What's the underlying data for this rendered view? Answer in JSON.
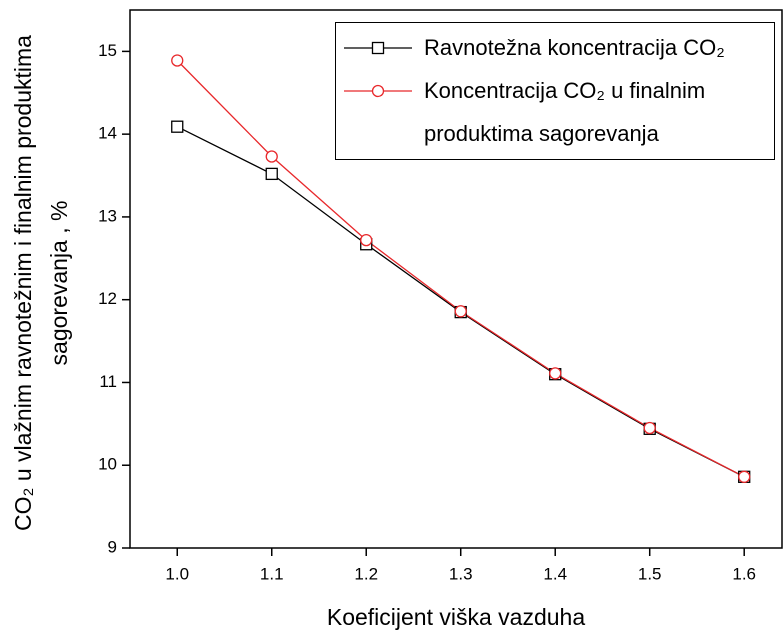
{
  "chart_data": {
    "type": "line",
    "xlabel": "Koeficijent viška vazduha",
    "ylabel": "CO₂ u vlažnim ravnotežnim i finalnim produktima sagorevanja , %",
    "x": [
      1.0,
      1.1,
      1.2,
      1.3,
      1.4,
      1.5,
      1.6
    ],
    "series": [
      {
        "name": "Ravnotežna koncentracija CO₂",
        "color": "#000000",
        "marker": "square",
        "values": [
          14.09,
          13.52,
          12.67,
          11.85,
          11.1,
          10.44,
          9.86
        ]
      },
      {
        "name": "Koncentracija CO₂ u finalnim produktima sagorevanja",
        "color": "#e8282b",
        "marker": "circle",
        "values": [
          14.89,
          13.73,
          12.72,
          11.86,
          11.11,
          10.45,
          9.86
        ]
      }
    ],
    "xlim": [
      0.95,
      1.64
    ],
    "ylim": [
      9,
      15.5
    ],
    "xticks": [
      {
        "value": 1.0,
        "label": "1.0"
      },
      {
        "value": 1.1,
        "label": "1.1"
      },
      {
        "value": 1.2,
        "label": "1.2"
      },
      {
        "value": 1.3,
        "label": "1.3"
      },
      {
        "value": 1.4,
        "label": "1.4"
      },
      {
        "value": 1.5,
        "label": "1.5"
      },
      {
        "value": 1.6,
        "label": "1.6"
      }
    ],
    "yticks": [
      9,
      10,
      11,
      12,
      13,
      14,
      15
    ],
    "legend": "upper right",
    "grid": false
  }
}
